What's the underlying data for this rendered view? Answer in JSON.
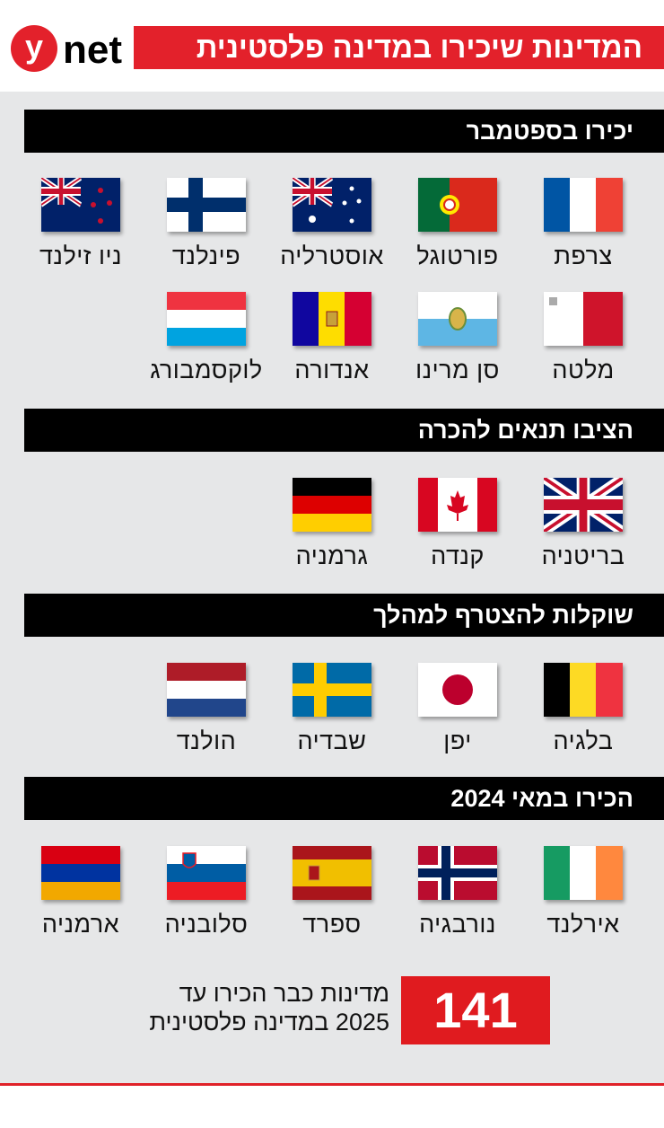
{
  "brand": "ynet",
  "title": "המדינות שיכירו במדינה פלסטינית",
  "colors": {
    "accent": "#e3212b",
    "bar": "#000000",
    "background": "#e6e7e8"
  },
  "sections": [
    {
      "heading": "יכירו בספטמבר",
      "countries": [
        {
          "name": "צרפת",
          "flag": "france"
        },
        {
          "name": "פורטוגל",
          "flag": "portugal"
        },
        {
          "name": "אוסטרליה",
          "flag": "australia"
        },
        {
          "name": "פינלנד",
          "flag": "finland"
        },
        {
          "name": "ניו זילנד",
          "flag": "new-zealand"
        },
        {
          "name": "מלטה",
          "flag": "malta"
        },
        {
          "name": "סן מרינו",
          "flag": "san-marino"
        },
        {
          "name": "אנדורה",
          "flag": "andorra"
        },
        {
          "name": "לוקסמבורג",
          "flag": "luxembourg"
        }
      ]
    },
    {
      "heading": "הציבו תנאים להכרה",
      "countries": [
        {
          "name": "בריטניה",
          "flag": "uk"
        },
        {
          "name": "קנדה",
          "flag": "canada"
        },
        {
          "name": "גרמניה",
          "flag": "germany"
        }
      ]
    },
    {
      "heading": "שוקלות להצטרף למהלך",
      "countries": [
        {
          "name": "בלגיה",
          "flag": "belgium"
        },
        {
          "name": "יפן",
          "flag": "japan"
        },
        {
          "name": "שבדיה",
          "flag": "sweden"
        },
        {
          "name": "הולנד",
          "flag": "netherlands"
        }
      ]
    },
    {
      "heading": "הכירו במאי 2024",
      "countries": [
        {
          "name": "אירלנד",
          "flag": "ireland"
        },
        {
          "name": "נורבגיה",
          "flag": "norway"
        },
        {
          "name": "ספרד",
          "flag": "spain"
        },
        {
          "name": "סלובניה",
          "flag": "slovenia"
        },
        {
          "name": "ארמניה",
          "flag": "armenia"
        }
      ]
    }
  ],
  "summary": {
    "count": "141",
    "line1": "מדינות כבר הכירו עד",
    "line2": "2025 במדינה פלסטינית"
  }
}
